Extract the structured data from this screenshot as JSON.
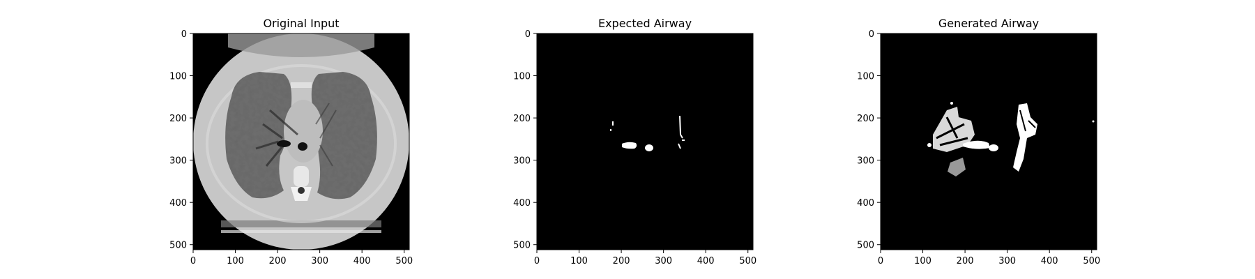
{
  "chart_data": [
    {
      "type": "image",
      "title": "Original Input",
      "content": "grayscale axial chest CT slice",
      "xlim": [
        0,
        512
      ],
      "ylim": [
        512,
        0
      ],
      "xticks": [
        0,
        100,
        200,
        300,
        400,
        500
      ],
      "yticks": [
        0,
        100,
        200,
        300,
        400,
        500
      ]
    },
    {
      "type": "image",
      "title": "Expected Airway",
      "content": "binary airway mask (white on black)",
      "xlim": [
        0,
        512
      ],
      "ylim": [
        512,
        0
      ],
      "xticks": [
        0,
        100,
        200,
        300,
        400,
        500
      ],
      "yticks": [
        0,
        100,
        200,
        300,
        400,
        500
      ]
    },
    {
      "type": "image",
      "title": "Generated Airway",
      "content": "binary airway mask (white on black)",
      "xlim": [
        0,
        512
      ],
      "ylim": [
        512,
        0
      ],
      "xticks": [
        0,
        100,
        200,
        300,
        400,
        500
      ],
      "yticks": [
        0,
        100,
        200,
        300,
        400,
        500
      ]
    }
  ]
}
